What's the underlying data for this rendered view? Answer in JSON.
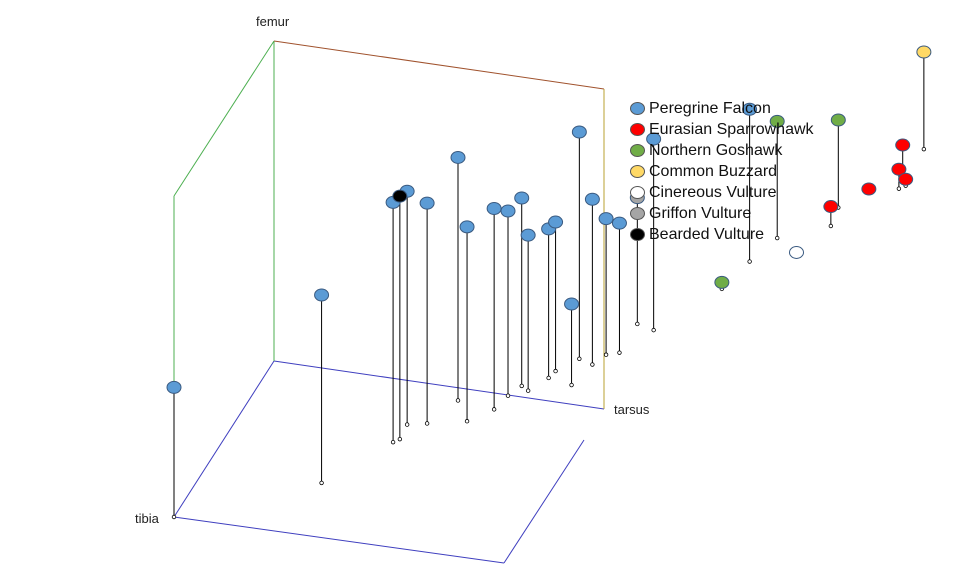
{
  "chart_data": {
    "type": "scatter",
    "title": "",
    "axes": {
      "x": "tibia",
      "y": "tarsus",
      "z": "femur"
    },
    "grid": false,
    "legend_position": "right",
    "series": [
      {
        "name": "Peregrine Falcon",
        "color": "#5b9bd5",
        "points": [
          {
            "x": 0.0,
            "y": 0.0,
            "z": 0.4
          },
          {
            "x": 0.3,
            "y": 0.14,
            "z": 0.58
          },
          {
            "x": 0.38,
            "y": 0.27,
            "z": 0.74
          },
          {
            "x": 0.42,
            "y": 0.33,
            "z": 0.68
          },
          {
            "x": 0.44,
            "y": 0.4,
            "z": 0.75
          },
          {
            "x": 0.52,
            "y": 0.35,
            "z": 0.6
          },
          {
            "x": 0.56,
            "y": 0.39,
            "z": 0.62
          },
          {
            "x": 0.56,
            "y": 0.43,
            "z": 0.57
          },
          {
            "x": 0.57,
            "y": 0.46,
            "z": 0.58
          },
          {
            "x": 0.6,
            "y": 0.45,
            "z": 0.48
          },
          {
            "x": 0.62,
            "y": 0.49,
            "z": 0.46
          },
          {
            "x": 0.62,
            "y": 0.51,
            "z": 0.46
          },
          {
            "x": 0.65,
            "y": 0.55,
            "z": 0.7
          },
          {
            "x": 0.7,
            "y": 0.48,
            "z": 0.25
          },
          {
            "x": 0.7,
            "y": 0.54,
            "z": 0.51
          },
          {
            "x": 0.71,
            "y": 0.57,
            "z": 0.42
          },
          {
            "x": 0.74,
            "y": 0.58,
            "z": 0.4
          },
          {
            "x": 0.77,
            "y": 0.65,
            "z": 0.59
          },
          {
            "x": 0.84,
            "y": 0.86,
            "z": 0.47
          },
          {
            "x": 0.37,
            "y": 0.32,
            "z": 0.72
          }
        ]
      },
      {
        "name": "Eurasian Sparrowhawk",
        "color": "#ff0000",
        "points": [
          {
            "x": 0.96,
            "y": 0.98,
            "z": 0.06
          },
          {
            "x": 0.97,
            "y": 1.08,
            "z": 0.01
          },
          {
            "x": 1.04,
            "y": 1.1,
            "z": 0.06
          },
          {
            "x": 1.05,
            "y": 1.11,
            "z": 0.02
          },
          {
            "x": 1.02,
            "y": 1.13,
            "z": 0.1
          }
        ]
      },
      {
        "name": "Northern Goshawk",
        "color": "#70ad47",
        "points": [
          {
            "x": 0.84,
            "y": 0.78,
            "z": 0.02
          },
          {
            "x": 0.85,
            "y": 0.93,
            "z": 0.36
          },
          {
            "x": 0.93,
            "y": 1.03,
            "z": 0.27
          }
        ]
      },
      {
        "name": "Common Buzzard",
        "color": "#ffd966",
        "points": [
          {
            "x": 1.0,
            "y": 1.21,
            "z": 0.3
          }
        ]
      },
      {
        "name": "Cinereous Vulture",
        "color": "#ffffff",
        "points": [
          {
            "x": 0.94,
            "y": 0.9,
            "z": 0.0
          }
        ]
      },
      {
        "name": "Griffon Vulture",
        "color": "#a5a5a5",
        "points": [
          {
            "x": 0.71,
            "y": 0.66,
            "z": 0.39
          }
        ]
      },
      {
        "name": "Bearded Vulture",
        "color": "#000000",
        "points": [
          {
            "x": 0.39,
            "y": 0.28,
            "z": 0.75
          }
        ]
      }
    ]
  }
}
